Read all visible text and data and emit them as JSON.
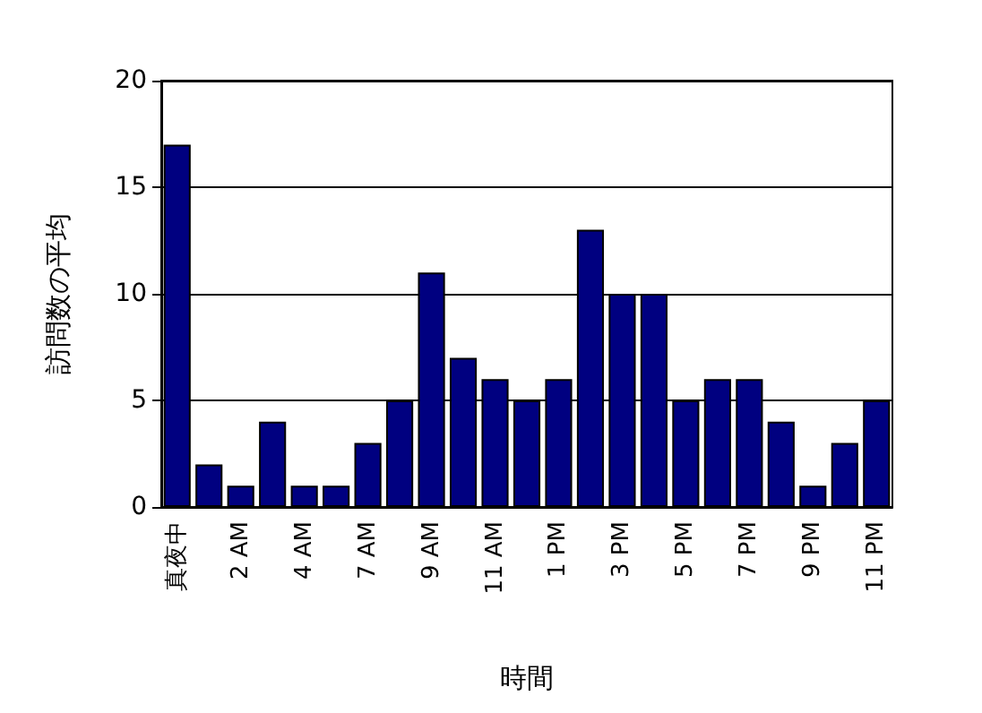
{
  "chart_data": {
    "type": "bar",
    "xlabel": "時間",
    "ylabel": "訪問数の平均",
    "categories": [
      "真夜中",
      null,
      "2 AM",
      null,
      "4 AM",
      null,
      "7 AM",
      null,
      "9 AM",
      null,
      "11 AM",
      null,
      "1 PM",
      null,
      "3 PM",
      null,
      "5 PM",
      null,
      "7 PM",
      null,
      "9 PM",
      null,
      "11 PM"
    ],
    "values": [
      17,
      2,
      1,
      4,
      1,
      1,
      3,
      5,
      11,
      7,
      6,
      5,
      6,
      13,
      10,
      10,
      5,
      6,
      6,
      4,
      1,
      3,
      5
    ],
    "color": "#000080",
    "ylim": [
      0,
      20
    ],
    "yticks": [
      0,
      5,
      10,
      15,
      20
    ],
    "grid": "y"
  }
}
